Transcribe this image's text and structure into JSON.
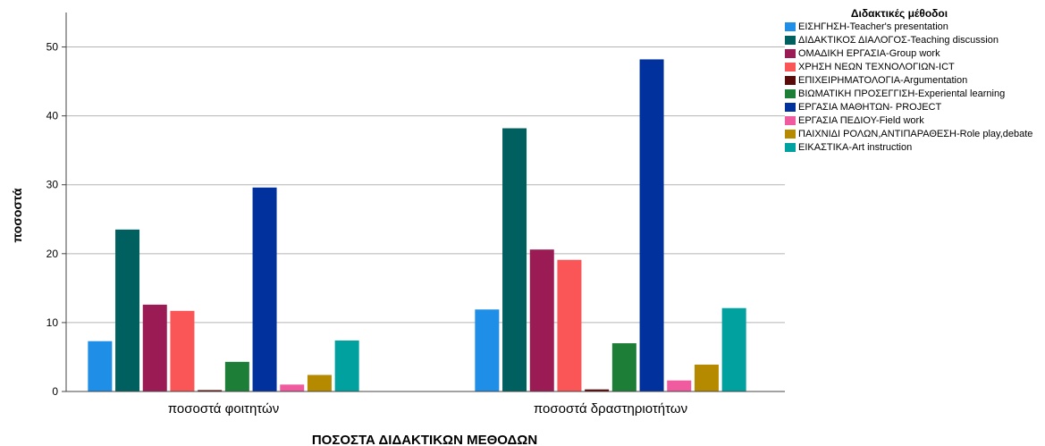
{
  "chart_data": {
    "type": "bar",
    "title": "",
    "xlabel": "ΠΟΣΟΣΤΑ ΔΙΔΑΚΤΙΚΩΝ ΜΕΘΟΔΩΝ",
    "ylabel": "ποσοστά",
    "ylim": [
      0,
      55
    ],
    "yticks": [
      0,
      10,
      20,
      30,
      40,
      50
    ],
    "categories": [
      "ποσοστά φοιτητών",
      "ποσοστά δραστηριοτήτων"
    ],
    "legend_title": "Διδακτικές μέθοδοι",
    "legend_position": "right",
    "grid": "horizontal",
    "series": [
      {
        "name": "ΕΙΣΗΓΗΣΗ-Teacher's presentation",
        "color": "#1f8ee6",
        "values": [
          7.3,
          11.9
        ]
      },
      {
        "name": "ΔΙΔΑΚΤΙΚΟΣ ΔΙΑΛΟΓΟΣ-Teaching discussion",
        "color": "#005f5f",
        "values": [
          23.5,
          38.2
        ]
      },
      {
        "name": "ΟΜΑΔΙΚΗ ΕΡΓΑΣΙΑ-Group work",
        "color": "#9b1b54",
        "values": [
          12.6,
          20.6
        ]
      },
      {
        "name": "ΧΡΗΣΗ ΝΕΩΝ ΤΕΧΝΟΛΟΓΙΩΝ-ICT",
        "color": "#fa5557",
        "values": [
          11.7,
          19.1
        ]
      },
      {
        "name": "ΕΠΙΧΕΙΡΗΜΑΤΟΛΟΓΙΑ-Argumentation",
        "color": "#5b0a0a",
        "values": [
          0.2,
          0.3
        ]
      },
      {
        "name": "ΒΙΩΜΑΤΙΚΗ ΠΡΟΣΕΓΓΙΣΗ-Experiental learning",
        "color": "#1d7e37",
        "values": [
          4.3,
          7.0
        ]
      },
      {
        "name": "ΕΡΓΑΣΙΑ ΜΑΘΗΤΩΝ- PROJECT",
        "color": "#00319d",
        "values": [
          29.6,
          48.2
        ]
      },
      {
        "name": "ΕΡΓΑΣΙΑ ΠΕΔΙΟΥ-Field work",
        "color": "#ef5b9e",
        "values": [
          1.0,
          1.6
        ]
      },
      {
        "name": "ΠΑΙΧΝΙΔΙ ΡΟΛΩΝ,ΑΝΤΙΠΑΡΑΘΕΣΗ-Role play,debate",
        "color": "#b68a00",
        "values": [
          2.4,
          3.9
        ]
      },
      {
        "name": "ΕΙΚΑΣΤΙΚΑ-Art instruction",
        "color": "#00a19e",
        "values": [
          7.4,
          12.1
        ]
      }
    ]
  }
}
